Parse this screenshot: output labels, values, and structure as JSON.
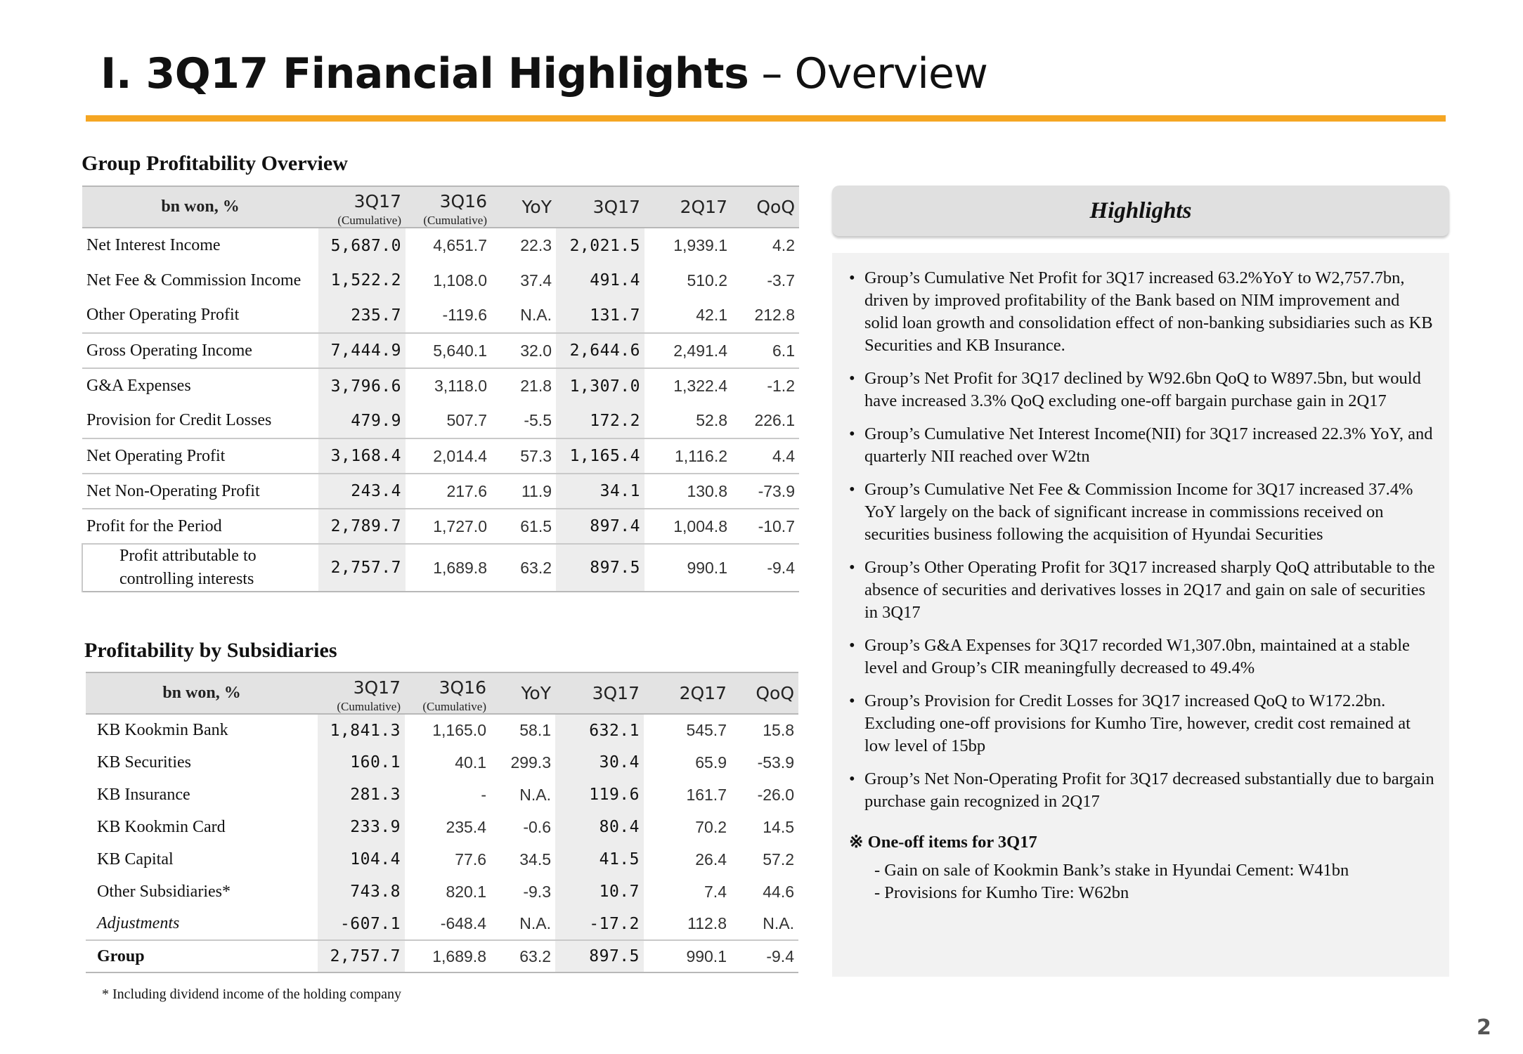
{
  "page": {
    "title_bold": "I. 3Q17 Financial Highlights",
    "title_light": " – Overview",
    "page_number": "2"
  },
  "colors": {
    "accent_rule": "#f5a623",
    "highlight_col": "#ededed",
    "header_bg": "#e3e3e3"
  },
  "profitability": {
    "title": "Group Profitability Overview",
    "header": {
      "label": "bn won, %",
      "c1": "3Q17",
      "c1_sub": "(Cumulative)",
      "c2": "3Q16",
      "c2_sub": "(Cumulative)",
      "c3": "YoY",
      "c4": "3Q17",
      "c5": "2Q17",
      "c6": "QoQ"
    },
    "rows": [
      {
        "name": "Net Interest Income",
        "v": [
          "5,687.0",
          "4,651.7",
          "22.3",
          "2,021.5",
          "1,939.1",
          "4.2"
        ]
      },
      {
        "name": "Net Fee & Commission Income",
        "v": [
          "1,522.2",
          "1,108.0",
          "37.4",
          "491.4",
          "510.2",
          "-3.7"
        ]
      },
      {
        "name": "Other Operating Profit",
        "v": [
          "235.7",
          "-119.6",
          "N.A.",
          "131.7",
          "42.1",
          "212.8"
        ]
      },
      {
        "name": "Gross Operating Income",
        "v": [
          "7,444.9",
          "5,640.1",
          "32.0",
          "2,644.6",
          "2,491.4",
          "6.1"
        ]
      },
      {
        "name": "G&A Expenses",
        "v": [
          "3,796.6",
          "3,118.0",
          "21.8",
          "1,307.0",
          "1,322.4",
          "-1.2"
        ]
      },
      {
        "name": "Provision for Credit Losses",
        "v": [
          "479.9",
          "507.7",
          "-5.5",
          "172.2",
          "52.8",
          "226.1"
        ]
      },
      {
        "name": "Net Operating Profit",
        "v": [
          "3,168.4",
          "2,014.4",
          "57.3",
          "1,165.4",
          "1,116.2",
          "4.4"
        ]
      },
      {
        "name": "Net Non-Operating Profit",
        "v": [
          "243.4",
          "217.6",
          "11.9",
          "34.1",
          "130.8",
          "-73.9"
        ]
      },
      {
        "name": "Profit for the Period",
        "v": [
          "2,789.7",
          "1,727.0",
          "61.5",
          "897.4",
          "1,004.8",
          "-10.7"
        ]
      },
      {
        "name_line1": "Profit attributable to",
        "name_line2": "controlling interests",
        "v": [
          "2,757.7",
          "1,689.8",
          "63.2",
          "897.5",
          "990.1",
          "-9.4"
        ]
      }
    ]
  },
  "subsidiaries": {
    "title": "Profitability by Subsidiaries",
    "header": {
      "label": "bn won, %",
      "c1": "3Q17",
      "c1_sub": "(Cumulative)",
      "c2": "3Q16",
      "c2_sub": "(Cumulative)",
      "c3": "YoY",
      "c4": "3Q17",
      "c5": "2Q17",
      "c6": "QoQ"
    },
    "rows": [
      {
        "name": "KB Kookmin Bank",
        "v": [
          "1,841.3",
          "1,165.0",
          "58.1",
          "632.1",
          "545.7",
          "15.8"
        ]
      },
      {
        "name": "KB Securities",
        "v": [
          "160.1",
          "40.1",
          "299.3",
          "30.4",
          "65.9",
          "-53.9"
        ]
      },
      {
        "name": "KB Insurance",
        "v": [
          "281.3",
          "-",
          "N.A.",
          "119.6",
          "161.7",
          "-26.0"
        ]
      },
      {
        "name": "KB Kookmin Card",
        "v": [
          "233.9",
          "235.4",
          "-0.6",
          "80.4",
          "70.2",
          "14.5"
        ]
      },
      {
        "name": "KB Capital",
        "v": [
          "104.4",
          "77.6",
          "34.5",
          "41.5",
          "26.4",
          "57.2"
        ]
      },
      {
        "name": "Other Subsidiaries*",
        "v": [
          "743.8",
          "820.1",
          "-9.3",
          "10.7",
          "7.4",
          "44.6"
        ]
      },
      {
        "name": "Adjustments",
        "v": [
          "-607.1",
          "-648.4",
          "N.A.",
          "-17.2",
          "112.8",
          "N.A."
        ]
      },
      {
        "name": "Group",
        "v": [
          "2,757.7",
          "1,689.8",
          "63.2",
          "897.5",
          "990.1",
          "-9.4"
        ]
      }
    ],
    "footnote": "* Including dividend income of the holding company"
  },
  "highlights": {
    "title": "Highlights",
    "bullet_char": "•",
    "bullets": [
      "Group’s Cumulative Net Profit for 3Q17 increased 63.2%YoY to W2,757.7bn, driven by improved profitability of the Bank based on NIM improvement and solid loan growth and consolidation effect of non-banking subsidiaries such as KB Securities and KB Insurance.",
      "Group’s Net Profit for 3Q17 declined by W92.6bn QoQ to W897.5bn, but would have increased 3.3% QoQ excluding one-off bargain purchase gain in 2Q17",
      "Group’s Cumulative Net Interest Income(NII) for 3Q17 increased 22.3% YoY, and quarterly NII reached over W2tn",
      "Group’s Cumulative Net Fee & Commission Income for 3Q17 increased 37.4% YoY largely on the back of significant increase in commissions received on securities business following the acquisition of Hyundai Securities",
      "Group’s Other Operating Profit for 3Q17 increased sharply QoQ attributable to the absence of securities and derivatives losses in 2Q17 and gain on sale of securities in 3Q17",
      "Group’s G&A Expenses for 3Q17 recorded W1,307.0bn, maintained at a stable level and Group’s CIR meaningfully decreased to 49.4%",
      "Group’s Provision for Credit Losses for 3Q17 increased QoQ to W172.2bn. Excluding one-off provisions for Kumho Tire, however, credit cost remained at low level of 15bp",
      "Group’s Net Non-Operating Profit for 3Q17 decreased substantially due to bargain purchase gain recognized in 2Q17"
    ],
    "oneoff_title": "※ One-off items for 3Q17",
    "oneoff_items": [
      "- Gain on sale of Kookmin Bank’s stake in Hyundai Cement: W41bn",
      "- Provisions for Kumho Tire: W62bn"
    ]
  }
}
